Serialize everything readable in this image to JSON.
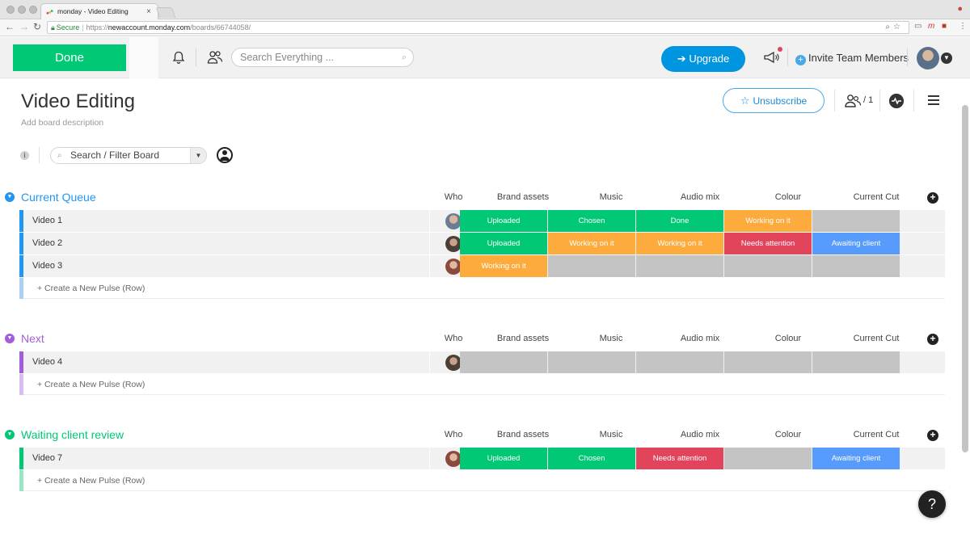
{
  "browser": {
    "tab_title": "monday - Video Editing",
    "tab_close": "×",
    "secure_label": "Secure",
    "url_scheme": "https://",
    "url_host": "newaccount.monday.com",
    "url_path": "/boards/66744058/"
  },
  "header": {
    "done_label": "Done",
    "search_placeholder": "Search Everything ...",
    "upgrade_label": "Upgrade",
    "invite_label": "Invite Team Members"
  },
  "board": {
    "title": "Video Editing",
    "description": "Add board description",
    "unsubscribe_label": "Unsubscribe",
    "subscribers": "/ 1",
    "filter_placeholder": "Search / Filter Board"
  },
  "columns": [
    "Who",
    "Brand assets",
    "Music",
    "Audio mix",
    "Colour",
    "Current Cut"
  ],
  "new_row_label": "+ Create a New Pulse (Row)",
  "status_colors": {
    "Uploaded": "#00c875",
    "Chosen": "#00c875",
    "Done": "#00c875",
    "Working on it": "#fdab3d",
    "Needs attention": "#e2445c",
    "Awaiting client": "#579bfc",
    "": "#c4c4c4"
  },
  "groups": [
    {
      "name": "Current Queue",
      "color": "#2196f3",
      "light": "#a9d0f5",
      "rows": [
        {
          "name": "Video 1",
          "statuses": [
            "Uploaded",
            "Chosen",
            "Done",
            "Working on it",
            ""
          ]
        },
        {
          "name": "Video 2",
          "statuses": [
            "Uploaded",
            "Working on it",
            "Working on it",
            "Needs attention",
            "Awaiting client"
          ]
        },
        {
          "name": "Video 3",
          "statuses": [
            "Working on it",
            "",
            "",
            "",
            ""
          ]
        }
      ]
    },
    {
      "name": "Next",
      "color": "#a25ddc",
      "light": "#d9bdf0",
      "rows": [
        {
          "name": "Video 4",
          "statuses": [
            "",
            "",
            "",
            "",
            ""
          ]
        }
      ]
    },
    {
      "name": "Waiting client review",
      "color": "#00c875",
      "light": "#99e6c4",
      "rows": [
        {
          "name": "Video 7",
          "statuses": [
            "Uploaded",
            "Chosen",
            "Needs attention",
            "",
            "Awaiting client"
          ]
        }
      ]
    }
  ],
  "help_label": "?"
}
